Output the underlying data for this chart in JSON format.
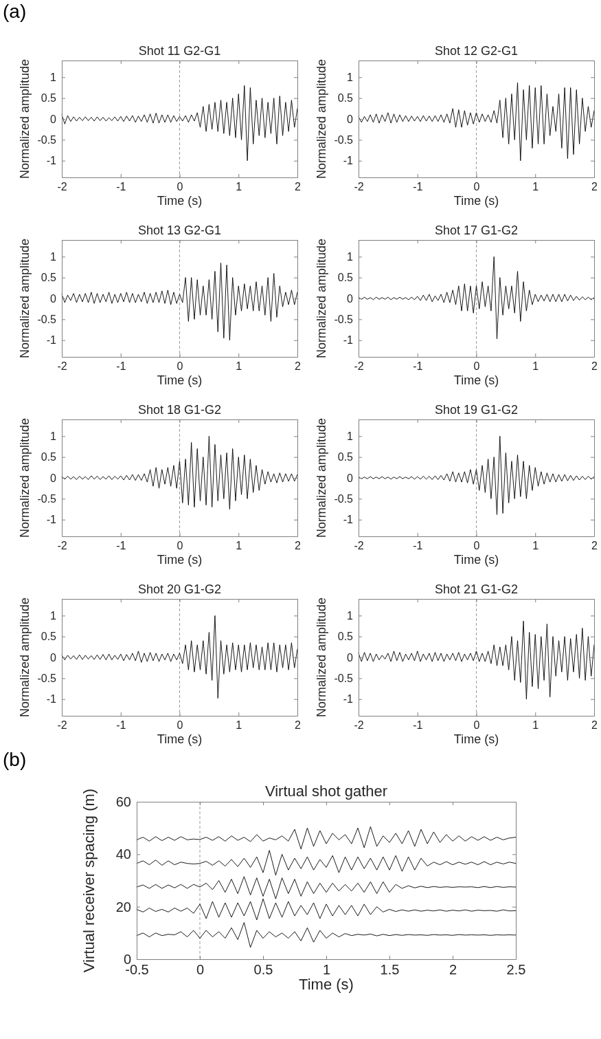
{
  "chart_data": [
    {
      "type": "line",
      "title": "Shot 11 G2-G1",
      "xlabel": "Time (s)",
      "ylabel": "Normalized amplitude",
      "annotations": [
        "(a)"
      ],
      "xlim": [
        -2,
        2
      ],
      "xticks": [
        -2,
        -1,
        0,
        1,
        2
      ],
      "ylim": [
        -1.4,
        1.4
      ],
      "yticks": [
        -1,
        -0.5,
        0,
        0.5,
        1
      ],
      "ref_lines": [
        {
          "axis": "x",
          "value": 0,
          "color": "#999999",
          "line_style": "dashed"
        }
      ],
      "x": [
        -2,
        -1.95,
        -1.9,
        -1.85,
        -1.8,
        -1.75,
        -1.7,
        -1.65,
        -1.6,
        -1.55,
        -1.5,
        -1.45,
        -1.4,
        -1.35,
        -1.3,
        -1.25,
        -1.2,
        -1.15,
        -1.1,
        -1.05,
        -1,
        -0.95,
        -0.9,
        -0.85,
        -0.8,
        -0.75,
        -0.7,
        -0.65,
        -0.6,
        -0.55,
        -0.5,
        -0.45,
        -0.4,
        -0.35,
        -0.3,
        -0.25,
        -0.2,
        -0.15,
        -0.1,
        -0.05,
        0,
        0.05,
        0.1,
        0.15,
        0.2,
        0.25,
        0.3,
        0.35,
        0.4,
        0.45,
        0.5,
        0.55,
        0.6,
        0.65,
        0.7,
        0.75,
        0.8,
        0.85,
        0.9,
        0.95,
        1,
        1.05,
        1.1,
        1.15,
        1.2,
        1.25,
        1.3,
        1.35,
        1.4,
        1.45,
        1.5,
        1.55,
        1.6,
        1.65,
        1.7,
        1.75,
        1.8,
        1.85,
        1.9,
        1.95,
        2
      ],
      "series": [
        {
          "color": "#000000",
          "values": [
            0.1,
            -0.12,
            0.08,
            -0.06,
            0.05,
            -0.05,
            0.04,
            -0.04,
            0.05,
            -0.04,
            0.04,
            -0.05,
            0.05,
            -0.04,
            0.04,
            -0.05,
            0.03,
            -0.04,
            0.05,
            -0.05,
            0.06,
            -0.06,
            0.07,
            -0.05,
            0.08,
            -0.08,
            0.07,
            -0.06,
            0.1,
            -0.08,
            0.12,
            -0.1,
            0.14,
            -0.1,
            0.1,
            -0.08,
            0.1,
            -0.08,
            0.08,
            -0.06,
            0.06,
            -0.05,
            0.08,
            -0.08,
            0.1,
            -0.05,
            0.15,
            -0.2,
            0.3,
            -0.3,
            0.35,
            -0.25,
            0.4,
            -0.3,
            0.45,
            -0.35,
            0.4,
            -0.4,
            0.5,
            -0.45,
            0.6,
            -0.5,
            0.8,
            -1,
            0.75,
            -0.6,
            0.45,
            -0.4,
            0.5,
            -0.45,
            0.4,
            -0.35,
            0.5,
            -0.6,
            0.55,
            -0.4,
            0.4,
            -0.3,
            0.45,
            -0.2,
            0.25
          ]
        }
      ]
    },
    {
      "type": "line",
      "title": "Shot 12 G2-G1",
      "xlabel": "Time (s)",
      "ylabel": "Normalized amplitude",
      "xlim": [
        -2,
        2
      ],
      "xticks": [
        -2,
        -1,
        0,
        1,
        2
      ],
      "ylim": [
        -1.4,
        1.4
      ],
      "yticks": [
        -1,
        -0.5,
        0,
        0.5,
        1
      ],
      "ref_lines": [
        {
          "axis": "x",
          "value": 0,
          "color": "#999999",
          "line_style": "dashed"
        }
      ],
      "x": [
        -2,
        -1.95,
        -1.9,
        -1.85,
        -1.8,
        -1.75,
        -1.7,
        -1.65,
        -1.6,
        -1.55,
        -1.5,
        -1.45,
        -1.4,
        -1.35,
        -1.3,
        -1.25,
        -1.2,
        -1.15,
        -1.1,
        -1.05,
        -1,
        -0.95,
        -0.9,
        -0.85,
        -0.8,
        -0.75,
        -0.7,
        -0.65,
        -0.6,
        -0.55,
        -0.5,
        -0.45,
        -0.4,
        -0.35,
        -0.3,
        -0.25,
        -0.2,
        -0.15,
        -0.1,
        -0.05,
        0,
        0.05,
        0.1,
        0.15,
        0.2,
        0.25,
        0.3,
        0.35,
        0.4,
        0.45,
        0.5,
        0.55,
        0.6,
        0.65,
        0.7,
        0.75,
        0.8,
        0.85,
        0.9,
        0.95,
        1,
        1.05,
        1.1,
        1.15,
        1.2,
        1.25,
        1.3,
        1.35,
        1.4,
        1.45,
        1.5,
        1.55,
        1.6,
        1.65,
        1.7,
        1.75,
        1.8,
        1.85,
        1.9,
        1.95,
        2
      ],
      "series": [
        {
          "color": "#000000",
          "values": [
            0.05,
            -0.08,
            0.06,
            -0.06,
            0.1,
            -0.08,
            0.12,
            -0.1,
            0.1,
            -0.06,
            0.15,
            -0.1,
            0.12,
            -0.08,
            0.1,
            -0.06,
            0.08,
            -0.06,
            0.07,
            -0.05,
            0.06,
            -0.06,
            0.08,
            -0.05,
            0.07,
            -0.06,
            0.08,
            -0.06,
            0.1,
            -0.08,
            0.12,
            -0.1,
            0.25,
            -0.2,
            0.22,
            -0.2,
            0.2,
            -0.15,
            0.15,
            -0.12,
            0.15,
            -0.08,
            0.12,
            -0.06,
            0.1,
            -0.08,
            0.2,
            -0.1,
            0.45,
            -0.45,
            0.5,
            -0.6,
            0.6,
            -0.5,
            0.87,
            -1,
            0.7,
            -0.5,
            0.8,
            -0.7,
            0.75,
            -0.6,
            0.8,
            -0.6,
            0.6,
            -0.4,
            0.3,
            -0.3,
            0.6,
            -0.7,
            0.75,
            -0.95,
            0.75,
            -0.85,
            0.7,
            -0.6,
            0.5,
            -0.3,
            0.3,
            -0.2,
            0.2
          ]
        }
      ]
    },
    {
      "type": "line",
      "title": "Shot 13 G2-G1",
      "xlabel": "Time (s)",
      "ylabel": "Normalized amplitude",
      "xlim": [
        -2,
        2
      ],
      "xticks": [
        -2,
        -1,
        0,
        1,
        2
      ],
      "ylim": [
        -1.4,
        1.4
      ],
      "yticks": [
        -1,
        -0.5,
        0,
        0.5,
        1
      ],
      "ref_lines": [
        {
          "axis": "x",
          "value": 0,
          "color": "#999999",
          "line_style": "dashed"
        }
      ],
      "x": [
        -2,
        -1.95,
        -1.9,
        -1.85,
        -1.8,
        -1.75,
        -1.7,
        -1.65,
        -1.6,
        -1.55,
        -1.5,
        -1.45,
        -1.4,
        -1.35,
        -1.3,
        -1.25,
        -1.2,
        -1.15,
        -1.1,
        -1.05,
        -1,
        -0.95,
        -0.9,
        -0.85,
        -0.8,
        -0.75,
        -0.7,
        -0.65,
        -0.6,
        -0.55,
        -0.5,
        -0.45,
        -0.4,
        -0.35,
        -0.3,
        -0.25,
        -0.2,
        -0.15,
        -0.1,
        -0.05,
        0,
        0.05,
        0.1,
        0.15,
        0.2,
        0.25,
        0.3,
        0.35,
        0.4,
        0.45,
        0.5,
        0.55,
        0.6,
        0.65,
        0.7,
        0.75,
        0.8,
        0.85,
        0.9,
        0.95,
        1,
        1.05,
        1.1,
        1.15,
        1.2,
        1.25,
        1.3,
        1.35,
        1.4,
        1.45,
        1.5,
        1.55,
        1.6,
        1.65,
        1.7,
        1.75,
        1.8,
        1.85,
        1.9,
        1.95,
        2
      ],
      "series": [
        {
          "color": "#000000",
          "values": [
            0.1,
            -0.1,
            0.08,
            -0.05,
            0.12,
            -0.1,
            0.1,
            -0.08,
            0.12,
            -0.1,
            0.15,
            -0.12,
            0.12,
            -0.1,
            0.1,
            -0.08,
            0.15,
            -0.12,
            0.1,
            -0.1,
            0.12,
            -0.08,
            0.15,
            -0.1,
            0.12,
            -0.1,
            0.1,
            -0.08,
            0.15,
            -0.12,
            0.12,
            -0.1,
            0.15,
            -0.1,
            0.18,
            -0.12,
            0.2,
            -0.15,
            0.15,
            -0.12,
            0.1,
            -0.1,
            0.5,
            -0.55,
            0.5,
            -0.5,
            0.45,
            -0.4,
            0.3,
            -0.4,
            0.45,
            -0.5,
            0.65,
            -0.8,
            0.85,
            -0.95,
            0.8,
            -1,
            0.5,
            -0.4,
            0.3,
            -0.3,
            0.35,
            -0.25,
            0.3,
            -0.3,
            0.4,
            -0.3,
            0.3,
            -0.4,
            0.5,
            -0.55,
            0.6,
            -0.45,
            0.3,
            -0.2,
            0.15,
            -0.15,
            0.2,
            -0.15,
            0.15
          ]
        }
      ]
    },
    {
      "type": "line",
      "title": "Shot 17 G1-G2",
      "xlabel": "Time (s)",
      "ylabel": "Normalized amplitude",
      "xlim": [
        -2,
        2
      ],
      "xticks": [
        -2,
        -1,
        0,
        1,
        2
      ],
      "ylim": [
        -1.4,
        1.4
      ],
      "yticks": [
        -1,
        -0.5,
        0,
        0.5,
        1
      ],
      "ref_lines": [
        {
          "axis": "x",
          "value": 0,
          "color": "#999999",
          "line_style": "dashed"
        }
      ],
      "x": [
        -2,
        -1.95,
        -1.9,
        -1.85,
        -1.8,
        -1.75,
        -1.7,
        -1.65,
        -1.6,
        -1.55,
        -1.5,
        -1.45,
        -1.4,
        -1.35,
        -1.3,
        -1.25,
        -1.2,
        -1.15,
        -1.1,
        -1.05,
        -1,
        -0.95,
        -0.9,
        -0.85,
        -0.8,
        -0.75,
        -0.7,
        -0.65,
        -0.6,
        -0.55,
        -0.5,
        -0.45,
        -0.4,
        -0.35,
        -0.3,
        -0.25,
        -0.2,
        -0.15,
        -0.1,
        -0.05,
        0,
        0.05,
        0.1,
        0.15,
        0.2,
        0.25,
        0.3,
        0.35,
        0.4,
        0.45,
        0.5,
        0.55,
        0.6,
        0.65,
        0.7,
        0.75,
        0.8,
        0.85,
        0.9,
        0.95,
        1,
        1.05,
        1.1,
        1.15,
        1.2,
        1.25,
        1.3,
        1.35,
        1.4,
        1.45,
        1.5,
        1.55,
        1.6,
        1.65,
        1.7,
        1.75,
        1.8,
        1.85,
        1.9,
        1.95,
        2
      ],
      "series": [
        {
          "color": "#000000",
          "values": [
            0.02,
            -0.02,
            0.03,
            -0.02,
            0.02,
            -0.03,
            0.03,
            -0.02,
            0.02,
            -0.02,
            0.03,
            -0.03,
            0.02,
            -0.02,
            0.03,
            -0.02,
            0.02,
            -0.03,
            0.03,
            -0.03,
            0.05,
            -0.05,
            0.08,
            -0.05,
            0.1,
            -0.08,
            0.06,
            -0.05,
            0.1,
            -0.1,
            0.15,
            -0.1,
            0.2,
            -0.15,
            0.3,
            -0.3,
            0.35,
            -0.3,
            0.3,
            -0.35,
            0.3,
            -0.25,
            0.4,
            -0.2,
            0.3,
            -0.3,
            1,
            -0.97,
            0.5,
            -0.4,
            0.3,
            -0.25,
            0.3,
            -0.35,
            0.65,
            -0.55,
            0.4,
            -0.3,
            0.2,
            -0.15,
            0.1,
            -0.08,
            0.08,
            -0.06,
            0.1,
            -0.08,
            0.1,
            -0.08,
            0.1,
            -0.08,
            0.1,
            -0.06,
            0.08,
            -0.05,
            0.05,
            -0.04,
            0.04,
            -0.03,
            0.03,
            -0.03,
            0.02
          ]
        }
      ]
    },
    {
      "type": "line",
      "title": "Shot 18 G1-G2",
      "xlabel": "Time (s)",
      "ylabel": "Normalized amplitude",
      "xlim": [
        -2,
        2
      ],
      "xticks": [
        -2,
        -1,
        0,
        1,
        2
      ],
      "ylim": [
        -1.4,
        1.4
      ],
      "yticks": [
        -1,
        -0.5,
        0,
        0.5,
        1
      ],
      "ref_lines": [
        {
          "axis": "x",
          "value": 0,
          "color": "#999999",
          "line_style": "dashed"
        }
      ],
      "x": [
        -2,
        -1.95,
        -1.9,
        -1.85,
        -1.8,
        -1.75,
        -1.7,
        -1.65,
        -1.6,
        -1.55,
        -1.5,
        -1.45,
        -1.4,
        -1.35,
        -1.3,
        -1.25,
        -1.2,
        -1.15,
        -1.1,
        -1.05,
        -1,
        -0.95,
        -0.9,
        -0.85,
        -0.8,
        -0.75,
        -0.7,
        -0.65,
        -0.6,
        -0.55,
        -0.5,
        -0.45,
        -0.4,
        -0.35,
        -0.3,
        -0.25,
        -0.2,
        -0.15,
        -0.1,
        -0.05,
        0,
        0.05,
        0.1,
        0.15,
        0.2,
        0.25,
        0.3,
        0.35,
        0.4,
        0.45,
        0.5,
        0.55,
        0.6,
        0.65,
        0.7,
        0.75,
        0.8,
        0.85,
        0.9,
        0.95,
        1,
        1.05,
        1.1,
        1.15,
        1.2,
        1.25,
        1.3,
        1.35,
        1.4,
        1.45,
        1.5,
        1.55,
        1.6,
        1.65,
        1.7,
        1.75,
        1.8,
        1.85,
        1.9,
        1.95,
        2
      ],
      "series": [
        {
          "color": "#000000",
          "values": [
            0.03,
            -0.03,
            0.04,
            -0.03,
            0.03,
            -0.04,
            0.04,
            -0.03,
            0.03,
            -0.04,
            0.05,
            -0.03,
            0.04,
            -0.04,
            0.03,
            -0.03,
            0.05,
            -0.04,
            0.04,
            -0.03,
            0.05,
            -0.05,
            0.06,
            -0.05,
            0.08,
            -0.06,
            0.08,
            -0.06,
            0.1,
            -0.1,
            0.2,
            -0.2,
            0.25,
            -0.25,
            0.2,
            -0.15,
            0.25,
            -0.2,
            0.3,
            -0.25,
            0.4,
            -0.6,
            0.45,
            -0.65,
            0.85,
            -0.7,
            0.7,
            -0.55,
            0.5,
            -0.65,
            1,
            -0.7,
            0.8,
            -0.55,
            0.55,
            -0.5,
            0.6,
            -0.75,
            0.7,
            -0.55,
            0.5,
            -0.4,
            0.55,
            -0.5,
            0.45,
            -0.35,
            0.3,
            -0.3,
            0.2,
            -0.15,
            0.15,
            -0.1,
            0.1,
            -0.12,
            0.12,
            -0.1,
            0.1,
            -0.08,
            0.1,
            -0.08,
            0.08
          ]
        }
      ]
    },
    {
      "type": "line",
      "title": "Shot 19 G1-G2",
      "xlabel": "Time (s)",
      "ylabel": "Normalized amplitude",
      "xlim": [
        -2,
        2
      ],
      "xticks": [
        -2,
        -1,
        0,
        1,
        2
      ],
      "ylim": [
        -1.4,
        1.4
      ],
      "yticks": [
        -1,
        -0.5,
        0,
        0.5,
        1
      ],
      "ref_lines": [
        {
          "axis": "x",
          "value": 0,
          "color": "#999999",
          "line_style": "dashed"
        }
      ],
      "x": [
        -2,
        -1.95,
        -1.9,
        -1.85,
        -1.8,
        -1.75,
        -1.7,
        -1.65,
        -1.6,
        -1.55,
        -1.5,
        -1.45,
        -1.4,
        -1.35,
        -1.3,
        -1.25,
        -1.2,
        -1.15,
        -1.1,
        -1.05,
        -1,
        -0.95,
        -0.9,
        -0.85,
        -0.8,
        -0.75,
        -0.7,
        -0.65,
        -0.6,
        -0.55,
        -0.5,
        -0.45,
        -0.4,
        -0.35,
        -0.3,
        -0.25,
        -0.2,
        -0.15,
        -0.1,
        -0.05,
        0,
        0.05,
        0.1,
        0.15,
        0.2,
        0.25,
        0.3,
        0.35,
        0.4,
        0.45,
        0.5,
        0.55,
        0.6,
        0.65,
        0.7,
        0.75,
        0.8,
        0.85,
        0.9,
        0.95,
        1,
        1.05,
        1.1,
        1.15,
        1.2,
        1.25,
        1.3,
        1.35,
        1.4,
        1.45,
        1.5,
        1.55,
        1.6,
        1.65,
        1.7,
        1.75,
        1.8,
        1.85,
        1.9,
        1.95,
        2
      ],
      "series": [
        {
          "color": "#000000",
          "values": [
            0.02,
            -0.02,
            0.02,
            -0.02,
            0.03,
            -0.02,
            0.02,
            -0.02,
            0.03,
            -0.02,
            0.02,
            -0.03,
            0.02,
            -0.02,
            0.03,
            -0.02,
            0.02,
            -0.02,
            0.03,
            -0.03,
            0.03,
            -0.03,
            0.04,
            -0.03,
            0.04,
            -0.04,
            0.05,
            -0.04,
            0.06,
            -0.05,
            0.1,
            -0.08,
            0.15,
            -0.1,
            0.12,
            -0.1,
            0.15,
            -0.12,
            0.2,
            -0.15,
            0.2,
            -0.3,
            0.3,
            -0.35,
            0.45,
            -0.5,
            0.5,
            -0.88,
            1,
            -0.85,
            0.6,
            -0.6,
            0.4,
            -0.5,
            0.55,
            -0.45,
            0.4,
            -0.5,
            0.3,
            -0.3,
            0.25,
            -0.2,
            0.15,
            -0.15,
            0.12,
            -0.1,
            0.1,
            -0.1,
            0.08,
            -0.08,
            0.08,
            -0.07,
            0.06,
            -0.06,
            0.05,
            -0.05,
            0.04,
            -0.04,
            0.04,
            -0.03,
            0.03
          ]
        }
      ]
    },
    {
      "type": "line",
      "title": "Shot 20 G1-G2",
      "xlabel": "Time (s)",
      "ylabel": "Normalized amplitude",
      "xlim": [
        -2,
        2
      ],
      "xticks": [
        -2,
        -1,
        0,
        1,
        2
      ],
      "ylim": [
        -1.4,
        1.4
      ],
      "yticks": [
        -1,
        -0.5,
        0,
        0.5,
        1
      ],
      "ref_lines": [
        {
          "axis": "x",
          "value": 0,
          "color": "#999999",
          "line_style": "dashed"
        }
      ],
      "x": [
        -2,
        -1.95,
        -1.9,
        -1.85,
        -1.8,
        -1.75,
        -1.7,
        -1.65,
        -1.6,
        -1.55,
        -1.5,
        -1.45,
        -1.4,
        -1.35,
        -1.3,
        -1.25,
        -1.2,
        -1.15,
        -1.1,
        -1.05,
        -1,
        -0.95,
        -0.9,
        -0.85,
        -0.8,
        -0.75,
        -0.7,
        -0.65,
        -0.6,
        -0.55,
        -0.5,
        -0.45,
        -0.4,
        -0.35,
        -0.3,
        -0.25,
        -0.2,
        -0.15,
        -0.1,
        -0.05,
        0,
        0.05,
        0.1,
        0.15,
        0.2,
        0.25,
        0.3,
        0.35,
        0.4,
        0.45,
        0.5,
        0.55,
        0.6,
        0.65,
        0.7,
        0.75,
        0.8,
        0.85,
        0.9,
        0.95,
        1,
        1.05,
        1.1,
        1.15,
        1.2,
        1.25,
        1.3,
        1.35,
        1.4,
        1.45,
        1.5,
        1.55,
        1.6,
        1.65,
        1.7,
        1.75,
        1.8,
        1.85,
        1.9,
        1.95,
        2
      ],
      "series": [
        {
          "color": "#000000",
          "values": [
            0.05,
            -0.06,
            0.05,
            -0.04,
            0.04,
            -0.05,
            0.06,
            -0.05,
            0.05,
            -0.04,
            0.04,
            -0.05,
            0.06,
            -0.05,
            0.07,
            -0.06,
            0.08,
            -0.06,
            0.05,
            -0.05,
            0.08,
            -0.08,
            0.07,
            -0.06,
            0.1,
            -0.08,
            0.15,
            -0.12,
            0.1,
            -0.1,
            0.12,
            -0.08,
            0.1,
            -0.1,
            0.08,
            -0.06,
            0.1,
            -0.1,
            0.08,
            -0.06,
            0.1,
            -0.15,
            0.3,
            -0.3,
            0.4,
            -0.35,
            0.3,
            -0.3,
            0.4,
            -0.4,
            0.6,
            -0.55,
            1,
            -0.98,
            0.4,
            -0.4,
            0.3,
            -0.35,
            0.35,
            -0.3,
            0.3,
            -0.35,
            0.3,
            -0.3,
            0.35,
            -0.25,
            0.3,
            -0.3,
            0.25,
            -0.3,
            0.35,
            -0.3,
            0.35,
            -0.35,
            0.3,
            -0.25,
            0.3,
            -0.3,
            0.35,
            -0.25,
            0.2
          ]
        }
      ]
    },
    {
      "type": "line",
      "title": "Shot 21 G1-G2",
      "xlabel": "Time (s)",
      "ylabel": "Normalized amplitude",
      "xlim": [
        -2,
        2
      ],
      "xticks": [
        -2,
        -1,
        0,
        1,
        2
      ],
      "ylim": [
        -1.4,
        1.4
      ],
      "yticks": [
        -1,
        -0.5,
        0,
        0.5,
        1
      ],
      "ref_lines": [
        {
          "axis": "x",
          "value": 0,
          "color": "#999999",
          "line_style": "dashed"
        }
      ],
      "x": [
        -2,
        -1.95,
        -1.9,
        -1.85,
        -1.8,
        -1.75,
        -1.7,
        -1.65,
        -1.6,
        -1.55,
        -1.5,
        -1.45,
        -1.4,
        -1.35,
        -1.3,
        -1.25,
        -1.2,
        -1.15,
        -1.1,
        -1.05,
        -1,
        -0.95,
        -0.9,
        -0.85,
        -0.8,
        -0.75,
        -0.7,
        -0.65,
        -0.6,
        -0.55,
        -0.5,
        -0.45,
        -0.4,
        -0.35,
        -0.3,
        -0.25,
        -0.2,
        -0.15,
        -0.1,
        -0.05,
        0,
        0.05,
        0.1,
        0.15,
        0.2,
        0.25,
        0.3,
        0.35,
        0.4,
        0.45,
        0.5,
        0.55,
        0.6,
        0.65,
        0.7,
        0.75,
        0.8,
        0.85,
        0.9,
        0.95,
        1,
        1.05,
        1.1,
        1.15,
        1.2,
        1.25,
        1.3,
        1.35,
        1.4,
        1.45,
        1.5,
        1.55,
        1.6,
        1.65,
        1.7,
        1.75,
        1.8,
        1.85,
        1.9,
        1.95,
        2
      ],
      "series": [
        {
          "color": "#000000",
          "values": [
            0.1,
            -0.1,
            0.12,
            -0.08,
            0.1,
            -0.1,
            0.08,
            -0.06,
            0.05,
            -0.04,
            0.1,
            -0.1,
            0.15,
            -0.08,
            0.12,
            -0.1,
            0.08,
            -0.06,
            0.1,
            -0.08,
            0.15,
            -0.1,
            0.08,
            -0.06,
            0.1,
            -0.1,
            0.12,
            -0.08,
            0.1,
            -0.1,
            0.08,
            -0.06,
            0.1,
            -0.08,
            0.12,
            -0.1,
            0.08,
            -0.06,
            0.1,
            -0.08,
            0.15,
            -0.1,
            0.1,
            -0.1,
            0.15,
            -0.15,
            0.3,
            -0.2,
            0.25,
            -0.2,
            0.3,
            -0.3,
            0.5,
            -0.55,
            0.4,
            -0.6,
            0.87,
            -1,
            0.6,
            -0.7,
            0.55,
            -0.75,
            0.5,
            -0.55,
            0.8,
            -0.95,
            0.5,
            -0.45,
            0.4,
            -0.35,
            0.5,
            -0.55,
            0.45,
            -0.35,
            0.55,
            -0.5,
            0.7,
            -0.55,
            0.5,
            -0.45,
            0.3
          ]
        }
      ]
    },
    {
      "type": "line",
      "title": "Virtual shot gather",
      "xlabel": "Time (s)",
      "ylabel": "Virtual receiver spacing (m)",
      "annotations": [
        "(b)"
      ],
      "xlim": [
        -0.5,
        2.5
      ],
      "xticks": [
        -0.5,
        0,
        0.5,
        1,
        1.5,
        2,
        2.5
      ],
      "ylim": [
        0,
        60
      ],
      "yticks": [
        0,
        20,
        40,
        60
      ],
      "ref_lines": [
        {
          "axis": "x",
          "value": 0,
          "color": "#999999",
          "line_style": "dashed"
        }
      ],
      "x": [
        -0.5,
        -0.45,
        -0.4,
        -0.35,
        -0.3,
        -0.25,
        -0.2,
        -0.15,
        -0.1,
        -0.05,
        0,
        0.05,
        0.1,
        0.15,
        0.2,
        0.25,
        0.3,
        0.35,
        0.4,
        0.45,
        0.5,
        0.55,
        0.6,
        0.65,
        0.7,
        0.75,
        0.8,
        0.85,
        0.9,
        0.95,
        1,
        1.05,
        1.1,
        1.15,
        1.2,
        1.25,
        1.3,
        1.35,
        1.4,
        1.45,
        1.5,
        1.55,
        1.6,
        1.65,
        1.7,
        1.75,
        1.8,
        1.85,
        1.9,
        1.95,
        2,
        2.05,
        2.1,
        2.15,
        2.2,
        2.25,
        2.3,
        2.35,
        2.4,
        2.45,
        2.5
      ],
      "series": [
        {
          "color": "#000000",
          "values": [
            45.5,
            46.5,
            45,
            46.7,
            45.2,
            46.5,
            45.3,
            46.7,
            45.5,
            45.8,
            45.6,
            46.5,
            45.3,
            46.7,
            45,
            47,
            45.3,
            46.5,
            44.8,
            47.5,
            45,
            46.2,
            45.5,
            47,
            45,
            49.5,
            42,
            50,
            43,
            49,
            44,
            48,
            45.5,
            47.5,
            44,
            50,
            42.5,
            50.5,
            43,
            47,
            44.5,
            48,
            44,
            49,
            43,
            49.5,
            44,
            48.5,
            44.5,
            47.5,
            45,
            47,
            45,
            46.7,
            45.3,
            46.7,
            45.3,
            46.5,
            45.5,
            46.2,
            46.5
          ]
        },
        {
          "color": "#000000",
          "values": [
            36.5,
            37.5,
            36,
            37.8,
            35.8,
            37.5,
            36,
            37,
            36.5,
            36.3,
            36.5,
            37.3,
            35.8,
            37.5,
            35.5,
            38,
            35.3,
            38.5,
            35,
            39,
            33,
            41.5,
            32,
            40,
            34,
            38.5,
            34.5,
            39,
            34,
            38,
            35,
            39.5,
            33,
            39,
            34,
            39,
            34.5,
            38.5,
            34,
            39,
            34,
            39.5,
            33.5,
            39,
            34,
            38.5,
            35.5,
            37,
            36,
            37.2,
            36,
            37,
            36.2,
            37,
            36,
            37.2,
            36,
            37,
            36.3,
            37,
            36.5
          ]
        },
        {
          "color": "#000000",
          "values": [
            27.5,
            28.3,
            27,
            28.5,
            27,
            28.3,
            27.2,
            28.5,
            27,
            28.5,
            27.5,
            29,
            26.5,
            30,
            25.5,
            30.5,
            25,
            31.5,
            24.5,
            31,
            24,
            30.5,
            23,
            31,
            25,
            30.5,
            24,
            29.5,
            25,
            29,
            25.5,
            29,
            26,
            28.5,
            26,
            29,
            25.5,
            29.5,
            25,
            29.5,
            25.5,
            28.5,
            27,
            28,
            27.2,
            27.8,
            27.3,
            27.7,
            27.4,
            27.6,
            27.4,
            27.6,
            27.5,
            27.6,
            27.3,
            27.7,
            27.3,
            27.7,
            27.4,
            27.6,
            27.5
          ]
        },
        {
          "color": "#000000",
          "values": [
            19,
            18,
            19.5,
            18.2,
            19,
            18,
            19.5,
            18.3,
            19.5,
            17.5,
            21,
            15.5,
            22,
            16,
            21.5,
            16,
            21.5,
            16.5,
            22,
            15,
            23,
            15.5,
            21.5,
            16,
            22,
            16.5,
            20.5,
            17,
            21.5,
            15.5,
            21,
            16.5,
            20.5,
            17,
            20.5,
            16.5,
            21,
            17,
            20,
            18,
            19,
            18.2,
            18.8,
            18.3,
            18.8,
            18.3,
            18.7,
            18.4,
            18.8,
            18.3,
            18.7,
            18.4,
            18.8,
            18.3,
            18.7,
            18.5,
            18.6,
            18.3,
            18.8,
            18.4,
            18.5
          ]
        },
        {
          "color": "#000000",
          "values": [
            9,
            10,
            8.5,
            10,
            9,
            9.5,
            9.3,
            10.5,
            8.5,
            11,
            8,
            11,
            8.5,
            10.5,
            8,
            12,
            7.5,
            14,
            4.5,
            11,
            8,
            10.5,
            8.5,
            10,
            8,
            10.5,
            7,
            12,
            6.5,
            11,
            8,
            10,
            8.5,
            9.8,
            9,
            9.5,
            9.2,
            9.6,
            8.9,
            9.5,
            9,
            9.4,
            9.1,
            9.4,
            9.2,
            9.3,
            9.1,
            9.4,
            9.2,
            9.3,
            9.1,
            9.4,
            9.2,
            9.3,
            9.2,
            9.3,
            9.1,
            9.3,
            9.2,
            9.3,
            9.2
          ]
        }
      ]
    }
  ]
}
